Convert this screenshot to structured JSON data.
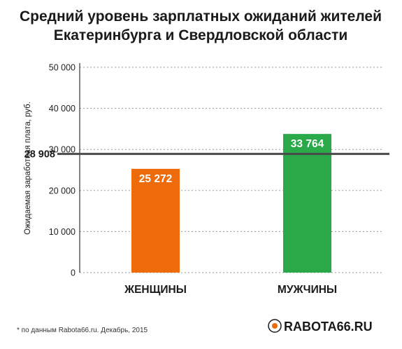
{
  "chart_data": {
    "type": "bar",
    "title": [
      "Средний уровень зарплатных ожиданий жителей",
      "Екатеринбурга и Свердловской области"
    ],
    "ylabel": "Ожидаемая заработная плата, руб.",
    "categories": [
      "ЖЕНЩИНЫ",
      "МУЖЧИНЫ"
    ],
    "values": [
      25272,
      33764
    ],
    "value_labels": [
      "25 272",
      "33 764"
    ],
    "bar_colors": [
      "#ee6b0c",
      "#2aa948"
    ],
    "ylim": [
      0,
      50000
    ],
    "yticks": [
      0,
      10000,
      20000,
      30000,
      40000,
      50000
    ],
    "ytick_labels": [
      "0",
      "10 000",
      "20 000",
      "30 000",
      "40 000",
      "50 000"
    ],
    "grid": true,
    "reference_line": {
      "value": 28908,
      "label": "28 908"
    }
  },
  "footnote": "* по данным Rabota66.ru. Декабрь, 2015",
  "logo": {
    "text": "RABOTA66.RU",
    "accent_color": "#ee6b0c"
  }
}
